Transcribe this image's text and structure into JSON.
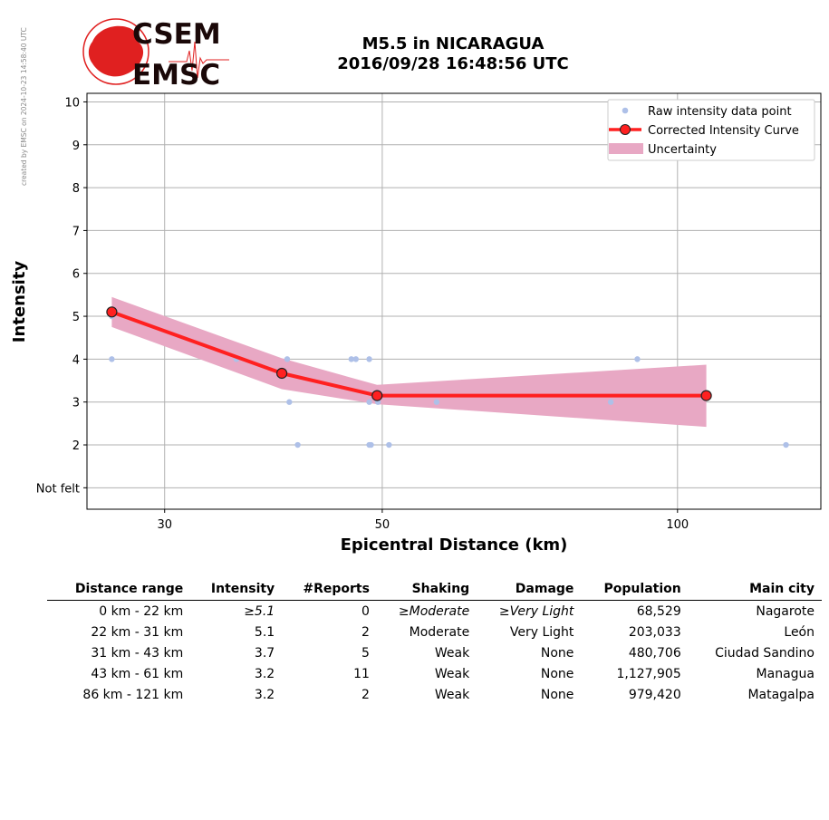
{
  "credit": "created by EMSC on 2024-10-23 14:58:40 UTC",
  "logo": {
    "line1": "CSEM",
    "line2": "EMSC"
  },
  "title": {
    "line1": "M5.5 in NICARAGUA",
    "line2": "2016/09/28 16:48:56 UTC"
  },
  "colors": {
    "raw": "#aec0e8",
    "curve": "#ff2020",
    "uncertainty": "#e8a8c4",
    "grid": "#b0b0b0",
    "logo_red": "#e02020"
  },
  "chart_data": {
    "type": "line",
    "xlabel": "Epicentral Distance (km)",
    "ylabel": "Intensity",
    "x_scale": "log",
    "xlim": [
      25,
      140
    ],
    "ylim": [
      0.5,
      10.2
    ],
    "x_ticks": [
      30,
      50,
      100
    ],
    "y_ticks": [
      {
        "value": 1,
        "label": "Not felt"
      },
      {
        "value": 2,
        "label": "2"
      },
      {
        "value": 3,
        "label": "3"
      },
      {
        "value": 4,
        "label": "4"
      },
      {
        "value": 5,
        "label": "5"
      },
      {
        "value": 6,
        "label": "6"
      },
      {
        "value": 7,
        "label": "7"
      },
      {
        "value": 8,
        "label": "8"
      },
      {
        "value": 9,
        "label": "9"
      },
      {
        "value": 10,
        "label": "10"
      }
    ],
    "grid": true,
    "legend_position": "top-right",
    "legend": [
      "Raw intensity data point",
      "Corrected Intensity Curve",
      "Uncertainty"
    ],
    "raw_points": [
      {
        "x": 26.5,
        "y": 4
      },
      {
        "x": 26.5,
        "y": 5
      },
      {
        "x": 35.5,
        "y": 4
      },
      {
        "x": 40.0,
        "y": 4
      },
      {
        "x": 40.2,
        "y": 3
      },
      {
        "x": 41.0,
        "y": 2
      },
      {
        "x": 46.5,
        "y": 4
      },
      {
        "x": 47.0,
        "y": 4
      },
      {
        "x": 48.5,
        "y": 4
      },
      {
        "x": 48.5,
        "y": 3
      },
      {
        "x": 48.5,
        "y": 2
      },
      {
        "x": 48.7,
        "y": 2
      },
      {
        "x": 49.5,
        "y": 3
      },
      {
        "x": 50.8,
        "y": 2
      },
      {
        "x": 56.8,
        "y": 3
      },
      {
        "x": 85.5,
        "y": 3
      },
      {
        "x": 91.0,
        "y": 4
      },
      {
        "x": 129.0,
        "y": 2
      }
    ],
    "curve": [
      {
        "x": 26.5,
        "y": 5.1
      },
      {
        "x": 39.5,
        "y": 3.67
      },
      {
        "x": 49.4,
        "y": 3.15
      },
      {
        "x": 107.0,
        "y": 3.15
      }
    ],
    "uncertainty": [
      {
        "x": 26.5,
        "low": 4.75,
        "high": 5.45
      },
      {
        "x": 39.5,
        "low": 3.3,
        "high": 4.02
      },
      {
        "x": 49.4,
        "low": 2.95,
        "high": 3.4
      },
      {
        "x": 107.0,
        "low": 2.42,
        "high": 3.87
      }
    ]
  },
  "table": {
    "headers": [
      "Distance range",
      "Intensity",
      "#Reports",
      "Shaking",
      "Damage",
      "Population",
      "Main city"
    ],
    "rows": [
      [
        "0 km -   22 km",
        "≥5.1",
        "0",
        "≥Moderate",
        "≥Very Light",
        "68,529",
        "Nagarote"
      ],
      [
        "22 km -   31 km",
        "5.1",
        "2",
        "Moderate",
        "Very Light",
        "203,033",
        "León"
      ],
      [
        "31 km -   43 km",
        "3.7",
        "5",
        "Weak",
        "None",
        "480,706",
        "Ciudad Sandino"
      ],
      [
        "43 km -   61 km",
        "3.2",
        "11",
        "Weak",
        "None",
        "1,127,905",
        "Managua"
      ],
      [
        "86 km -  121 km",
        "3.2",
        "2",
        "Weak",
        "None",
        "979,420",
        "Matagalpa"
      ]
    ],
    "italic_row": 0
  }
}
